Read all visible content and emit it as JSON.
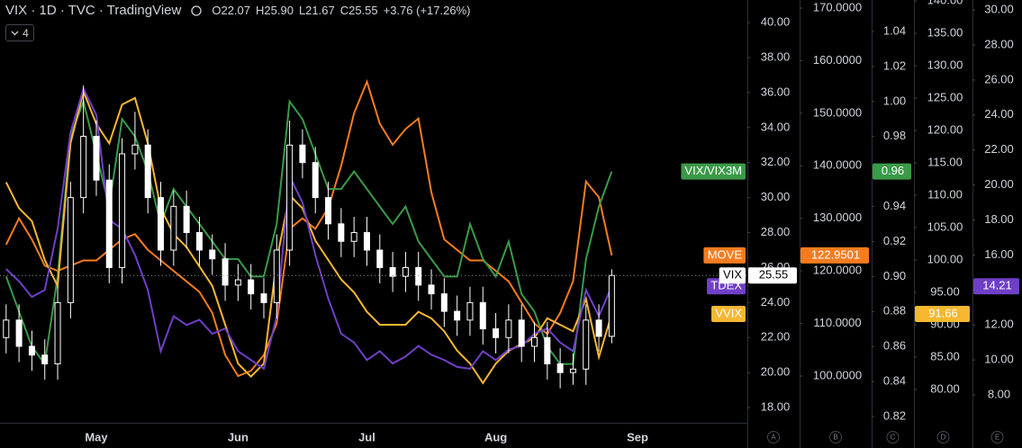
{
  "chart_data": {
    "type": "candlestick",
    "title": "VIX · 1D · TVC · TradingView",
    "header_values": [
      "O22.07",
      "H25.90",
      "L21.67",
      "C25.55",
      "+3.76 (+17.26%)"
    ],
    "indicators_button": "4",
    "categories": [
      null,
      null,
      null,
      null,
      null,
      null,
      null,
      "May",
      null,
      null,
      null,
      null,
      null,
      null,
      null,
      null,
      null,
      null,
      "Jun",
      null,
      null,
      null,
      null,
      null,
      null,
      null,
      null,
      null,
      "Jul",
      null,
      null,
      null,
      null,
      null,
      null,
      null,
      null,
      null,
      "Aug",
      null,
      null,
      null,
      null,
      null,
      null,
      null,
      null,
      null,
      null,
      "Sep"
    ],
    "candles": {
      "name": "VIX",
      "scale_label": "A",
      "up_color": "#000000",
      "down_color": "#ffffff",
      "outline_color": "#ffffff",
      "open": [
        22,
        23,
        21.5,
        21,
        20.5,
        24,
        30,
        33.5,
        31,
        26,
        32.5,
        33,
        30,
        27,
        29.5,
        28,
        27,
        26.5,
        25,
        25.3,
        24.5,
        24,
        27,
        33,
        32,
        30,
        28.5,
        27.5,
        28,
        27,
        26,
        25.5,
        26,
        25,
        24.5,
        23.5,
        23,
        24,
        22.5,
        22,
        23,
        21.5,
        22,
        20.5,
        20,
        20.2,
        23,
        22.07,
        null,
        null
      ],
      "high": [
        23.9,
        23.9,
        22.4,
        21.9,
        24.9,
        30.9,
        36.4,
        34.4,
        31.9,
        33.4,
        34.9,
        33.9,
        30.9,
        30.4,
        30.4,
        28.9,
        27.9,
        27.4,
        26.2,
        26.2,
        25.4,
        27.9,
        34.4,
        33.9,
        32.9,
        30.9,
        29.4,
        28.9,
        28.9,
        27.9,
        26.9,
        26.9,
        26.9,
        25.9,
        25.4,
        24.4,
        24.9,
        24.9,
        23.4,
        23.9,
        23.9,
        22.9,
        22.9,
        21.4,
        21.1,
        23.9,
        23.9,
        25.9,
        null,
        null
      ],
      "low": [
        21.1,
        20.6,
        20.1,
        19.6,
        19.6,
        23.1,
        29.1,
        30.1,
        25.1,
        25.1,
        31.6,
        29.1,
        26.1,
        26.1,
        27.1,
        26.1,
        25.6,
        24.1,
        24.1,
        23.6,
        23.1,
        23.1,
        26.1,
        31.1,
        29.1,
        27.6,
        26.6,
        26.6,
        26.1,
        25.1,
        24.6,
        24.6,
        24.1,
        23.6,
        22.6,
        22.1,
        22.1,
        21.6,
        21.1,
        21.1,
        20.6,
        20.6,
        19.6,
        19.1,
        19.3,
        19.3,
        21.2,
        21.67,
        null,
        null
      ],
      "close": [
        23,
        21.5,
        21,
        20.5,
        24,
        30,
        33.5,
        31,
        26,
        32.5,
        33,
        30,
        27,
        29.5,
        28,
        27,
        26.5,
        25,
        25.3,
        24.5,
        24,
        27,
        33,
        32,
        30,
        28.5,
        27.5,
        28,
        27,
        26,
        25.5,
        26,
        25,
        24.5,
        23.5,
        23,
        24,
        22.5,
        22,
        23,
        21.5,
        22,
        20.5,
        20,
        20.2,
        23,
        22.07,
        25.55,
        null,
        null
      ],
      "ylim": [
        17.13,
        41.29
      ],
      "yticks": [
        {
          "value": 18,
          "label": "18.00"
        },
        {
          "value": 20,
          "label": "20.00"
        },
        {
          "value": 22,
          "label": "22.00"
        },
        {
          "value": 24,
          "label": "24.00"
        },
        {
          "value": 26,
          "label": "26.00"
        },
        {
          "value": 28,
          "label": "28.00"
        },
        {
          "value": 30,
          "label": "30.00"
        },
        {
          "value": 32,
          "label": "32.00"
        },
        {
          "value": 34,
          "label": "34.00"
        },
        {
          "value": 36,
          "label": "36.00"
        },
        {
          "value": 38,
          "label": "38.00"
        },
        {
          "value": 40,
          "label": "40.00"
        }
      ]
    },
    "series": [
      {
        "name": "MOVE",
        "color": "#f57c1f",
        "scale_label": "B",
        "values": [
          125,
          130,
          126,
          121,
          120,
          121,
          122,
          122,
          124,
          126,
          127,
          124,
          122,
          120,
          118,
          116,
          112,
          104,
          100,
          101,
          104,
          110,
          128,
          130,
          128,
          132,
          140,
          150,
          156,
          148,
          144,
          147,
          149,
          135,
          126,
          124,
          122,
          122,
          120,
          118,
          114,
          110,
          108,
          112,
          118,
          137,
          134,
          122.9501,
          null,
          null
        ],
        "ylim": [
          91.1,
          171.54
        ],
        "yticks": [
          {
            "value": 100,
            "label": "100.0000"
          },
          {
            "value": 110,
            "label": "110.0000"
          },
          {
            "value": 120,
            "label": "120.0000"
          },
          {
            "value": 130,
            "label": "130.0000"
          },
          {
            "value": 140,
            "label": "140.0000"
          },
          {
            "value": 150,
            "label": "150.0000"
          },
          {
            "value": 160,
            "label": "160.0000"
          },
          {
            "value": 170,
            "label": "170.0000"
          }
        ]
      },
      {
        "name": "VIX/VIX3M",
        "color": "#3a9a48",
        "scale_label": "C",
        "values": [
          0.9,
          0.88,
          0.86,
          0.85,
          0.9,
          0.98,
          1.0,
          0.97,
          0.94,
          0.99,
          0.98,
          0.96,
          0.93,
          0.95,
          0.94,
          0.93,
          0.92,
          0.91,
          0.91,
          0.9,
          0.9,
          0.93,
          1.0,
          0.99,
          0.97,
          0.95,
          0.95,
          0.96,
          0.95,
          0.94,
          0.93,
          0.94,
          0.92,
          0.91,
          0.9,
          0.9,
          0.93,
          0.91,
          0.9,
          0.92,
          0.89,
          0.88,
          0.86,
          0.85,
          0.85,
          0.91,
          0.94,
          0.96,
          null,
          null
        ],
        "ylim": [
          0.8164,
          1.058
        ],
        "yticks": [
          {
            "value": 0.82,
            "label": "0.82"
          },
          {
            "value": 0.84,
            "label": "0.84"
          },
          {
            "value": 0.86,
            "label": "0.86"
          },
          {
            "value": 0.88,
            "label": "0.88"
          },
          {
            "value": 0.9,
            "label": "0.90"
          },
          {
            "value": 0.92,
            "label": "0.92"
          },
          {
            "value": 0.94,
            "label": "0.94"
          },
          {
            "value": 0.96,
            "label": "0.96"
          },
          {
            "value": 0.98,
            "label": "0.98"
          },
          {
            "value": 1,
            "label": "1.00"
          },
          {
            "value": 1.02,
            "label": "1.02"
          },
          {
            "value": 1.04,
            "label": "1.04"
          }
        ]
      },
      {
        "name": "VVIX",
        "color": "#f7b731",
        "scale_label": "D",
        "values": [
          112,
          108,
          106,
          100,
          96,
          118,
          126,
          121,
          118,
          124,
          125,
          118,
          108,
          104,
          102,
          99,
          96,
          90,
          84,
          82,
          84,
          100,
          110,
          108,
          103,
          100,
          97,
          95,
          92,
          90,
          90,
          90,
          92,
          91,
          89,
          86,
          84,
          81,
          84,
          86,
          87,
          88,
          91,
          90,
          89,
          94,
          85,
          91.66,
          null,
          null
        ],
        "ylim": [
          74.86,
          140.14
        ],
        "yticks": [
          {
            "value": 80,
            "label": "80.00"
          },
          {
            "value": 85,
            "label": "85.00"
          },
          {
            "value": 90,
            "label": "90.00"
          },
          {
            "value": 95,
            "label": "95.00"
          },
          {
            "value": 100,
            "label": "100.00"
          },
          {
            "value": 105,
            "label": "105.00"
          },
          {
            "value": 110,
            "label": "110.00"
          },
          {
            "value": 115,
            "label": "115.00"
          },
          {
            "value": 120,
            "label": "120.00"
          },
          {
            "value": 125,
            "label": "125.00"
          },
          {
            "value": 130,
            "label": "130.00"
          },
          {
            "value": 135,
            "label": "135.00"
          },
          {
            "value": 140,
            "label": "140.00"
          }
        ]
      },
      {
        "name": "TDEX",
        "color": "#6f3fc7",
        "scale_label": "E",
        "values": [
          15.2,
          14.5,
          13.6,
          14,
          17.5,
          23,
          25.5,
          24,
          18,
          17.5,
          16,
          14,
          10.5,
          12.5,
          12,
          12.3,
          11.5,
          11.8,
          10.5,
          10,
          9.5,
          12.5,
          20.5,
          19,
          16,
          13.5,
          11.5,
          11,
          10,
          10.5,
          9.8,
          10.2,
          10.8,
          10.3,
          10,
          9.6,
          9.5,
          10.5,
          10,
          10.6,
          10.8,
          11.5,
          11.8,
          11,
          10.5,
          14,
          12.5,
          14.21,
          null,
          null
        ],
        "ylim": [
          6.41,
          30.57
        ],
        "yticks": [
          {
            "value": 8,
            "label": "8.00"
          },
          {
            "value": 10,
            "label": "10.00"
          },
          {
            "value": 12,
            "label": "12.00"
          },
          {
            "value": 14,
            "label": "14.00"
          },
          {
            "value": 16,
            "label": "16.00"
          },
          {
            "value": 18,
            "label": "18.00"
          },
          {
            "value": 20,
            "label": "20.00"
          },
          {
            "value": 22,
            "label": "22.00"
          },
          {
            "value": 24,
            "label": "24.00"
          },
          {
            "value": 26,
            "label": "26.00"
          },
          {
            "value": 28,
            "label": "28.00"
          },
          {
            "value": 30,
            "label": "30.00"
          }
        ]
      }
    ]
  }
}
